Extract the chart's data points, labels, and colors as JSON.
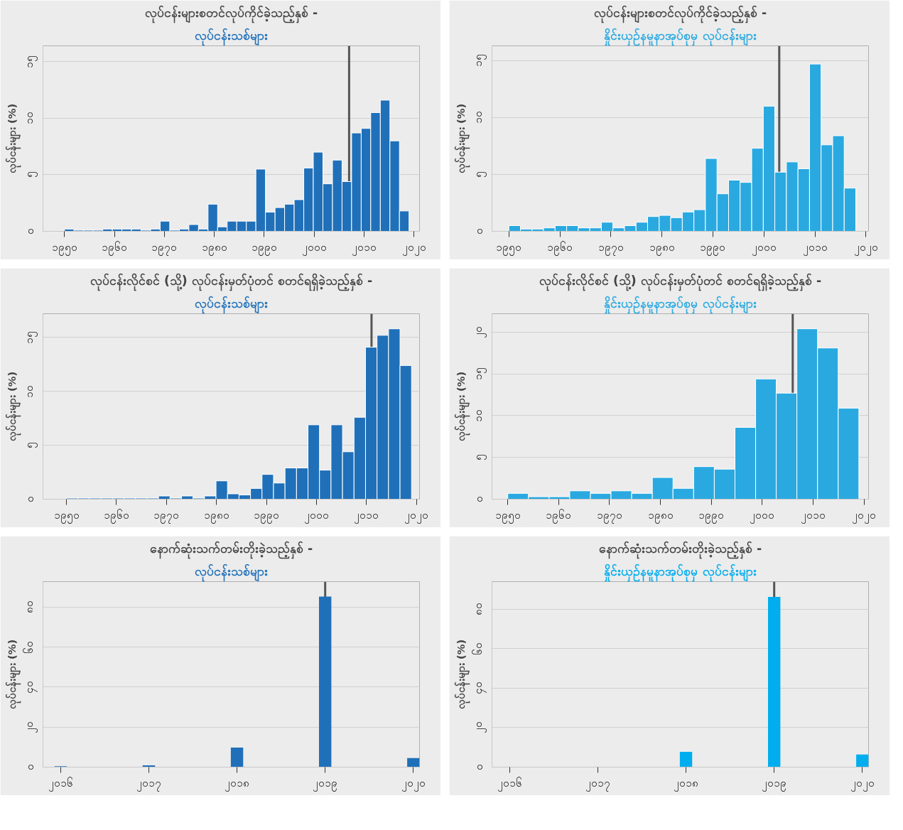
{
  "chart_data": [
    {
      "type": "histogram",
      "title": "လုပ်ငန်းများစတင်လုပ်ကိုင်ခဲ့သည့်နှစ် -",
      "subtitle": "လုပ်ငန်းသစ်များ",
      "ylabel": "လုပ်ငန်းများ (%)",
      "color": "#1f70b8",
      "bins": [
        1950,
        1951.92,
        1953.83,
        1955.75,
        1957.67,
        1959.58,
        1961.5,
        1963.42,
        1965.33,
        1967.25,
        1969.17,
        1971.08,
        1973,
        1974.92,
        1976.83,
        1978.75,
        1980.67,
        1982.58,
        1984.5,
        1986.42,
        1988.33,
        1990.25,
        1992.17,
        1994.08,
        1996,
        1997.92,
        1999.83,
        2001.75,
        2003.67,
        2005.58,
        2007.5,
        2009.42,
        2011.33,
        2013.25,
        2015.17,
        2017.08,
        2019
      ],
      "values": [
        0.2,
        0.1,
        0.1,
        0.1,
        0.2,
        0.2,
        0.2,
        0.2,
        0.1,
        0.2,
        0.9,
        0.1,
        0.2,
        0.6,
        0.2,
        2.4,
        0.4,
        0.9,
        0.9,
        0.9,
        5.5,
        1.7,
        2.1,
        2.4,
        2.8,
        5.6,
        7.0,
        4.2,
        6.3,
        4.4,
        8.7,
        9.1,
        10.5,
        11.6,
        8.0,
        1.8
      ],
      "xlim": [
        1945.7,
        2021.1
      ],
      "ylim": [
        0,
        16.4
      ],
      "xticks": [
        {
          "value": 1950,
          "label": "၁၉၅၀"
        },
        {
          "value": 1960,
          "label": "၁၉၆၀"
        },
        {
          "value": 1970,
          "label": "၁၉၇၀"
        },
        {
          "value": 1980,
          "label": "၁၉၈၀"
        },
        {
          "value": 1990,
          "label": "၁၉၉၀"
        },
        {
          "value": 2000,
          "label": "၂၀၀၀"
        },
        {
          "value": 2010,
          "label": "၂၀၁၀"
        },
        {
          "value": 2020,
          "label": "၂၀၂၀"
        }
      ],
      "yticks": [
        {
          "value": 0,
          "label": "၀"
        },
        {
          "value": 5,
          "label": "၅"
        },
        {
          "value": 10,
          "label": "၁၀"
        },
        {
          "value": 15,
          "label": "၁၅"
        }
      ],
      "grid": "y",
      "ref_lines": [
        {
          "axis": "x",
          "value": 2007,
          "color": "#555555"
        }
      ]
    },
    {
      "type": "histogram",
      "title": "လုပ်ငန်းများစတင်လုပ်ကိုင်ခဲ့သည့်နှစ် -",
      "subtitle": "နှိုင်းယှဉ်နမူနာအုပ်စုမှ လုပ်ငန်းများ",
      "ylabel": "လုပ်ငန်းများ (%)",
      "color": "#29a9e0",
      "bins": [
        1950,
        1952.27,
        1954.53,
        1956.8,
        1959.07,
        1961.33,
        1963.6,
        1965.87,
        1968.13,
        1970.4,
        1972.67,
        1974.93,
        1977.2,
        1979.47,
        1981.73,
        1984,
        1986.27,
        1988.53,
        1990.8,
        1993.07,
        1995.33,
        1997.6,
        1999.87,
        2002.13,
        2004.4,
        2006.67,
        2008.93,
        2011.2,
        2013.47,
        2015.73,
        2018
      ],
      "values": [
        0.5,
        0.2,
        0.2,
        0.3,
        0.5,
        0.5,
        0.3,
        0.3,
        0.8,
        0.3,
        0.5,
        0.8,
        1.3,
        1.4,
        1.2,
        1.7,
        1.9,
        6.4,
        3.3,
        4.5,
        4.3,
        7.3,
        11.0,
        5.2,
        6.1,
        5.5,
        14.7,
        7.6,
        8.4,
        3.8
      ],
      "xlim": [
        1946.7,
        2020.5
      ],
      "ylim": [
        0,
        16.3
      ],
      "xticks": [
        {
          "value": 1950,
          "label": "၁၉၅၀"
        },
        {
          "value": 1960,
          "label": "၁၉၆၀"
        },
        {
          "value": 1970,
          "label": "၁၉၇၀"
        },
        {
          "value": 1980,
          "label": "၁၉၈၀"
        },
        {
          "value": 1990,
          "label": "၁၉၉၀"
        },
        {
          "value": 2000,
          "label": "၂၀၀၀"
        },
        {
          "value": 2010,
          "label": "၂၀၁၀"
        },
        {
          "value": 2020,
          "label": "၂၀၂၀"
        }
      ],
      "yticks": [
        {
          "value": 0,
          "label": "၀"
        },
        {
          "value": 5,
          "label": "၅"
        },
        {
          "value": 10,
          "label": "၁၀"
        },
        {
          "value": 15,
          "label": "၁၅"
        }
      ],
      "grid": "y",
      "ref_lines": [
        {
          "axis": "x",
          "value": 2003,
          "color": "#555555"
        }
      ]
    },
    {
      "type": "histogram",
      "title": "လုပ်ငန်းလိုင်စင် (သို့) လုပ်ငန်းမှတ်ပုံတင် စတင်ရရှိခဲ့သည့်နှစ် -",
      "subtitle": "လုပ်ငန်းသစ်များ",
      "ylabel": "လုပ်ငန်းများ (%)",
      "color": "#1f70b8",
      "bins": [
        1950,
        1952.3,
        1954.6,
        1956.9,
        1959.2,
        1961.5,
        1963.8,
        1966.1,
        1968.4,
        1970.7,
        1973,
        1975.3,
        1977.6,
        1979.9,
        1982.2,
        1984.5,
        1986.8,
        1989.1,
        1991.4,
        1993.7,
        1996,
        1998.3,
        2000.6,
        2002.9,
        2005.2,
        2007.5,
        2009.8,
        2012.1,
        2014.4,
        2016.7,
        2019
      ],
      "values": [
        0.1,
        0.1,
        0.1,
        0.1,
        0.1,
        0.1,
        0.1,
        0.1,
        0.3,
        0.1,
        0.3,
        0.1,
        0.3,
        1.7,
        0.5,
        0.4,
        1.0,
        2.3,
        1.5,
        2.9,
        2.9,
        6.9,
        2.7,
        6.9,
        4.4,
        7.6,
        14.1,
        15.2,
        15.8,
        12.4
      ],
      "xlim": [
        1945.3,
        2020.6
      ],
      "ylim": [
        0,
        17.2
      ],
      "xticks": [
        {
          "value": 1950,
          "label": "၁၉၅၀"
        },
        {
          "value": 1960,
          "label": "၁၉၆၀"
        },
        {
          "value": 1970,
          "label": "၁၉၇၀"
        },
        {
          "value": 1980,
          "label": "၁၉၈၀"
        },
        {
          "value": 1990,
          "label": "၁၉၉၀"
        },
        {
          "value": 2000,
          "label": "၂၀၀၀"
        },
        {
          "value": 2010,
          "label": "၂၀၁၀"
        },
        {
          "value": 2020,
          "label": "၂၀၂၀"
        }
      ],
      "yticks": [
        {
          "value": 0,
          "label": "၀"
        },
        {
          "value": 5,
          "label": "၅"
        },
        {
          "value": 10,
          "label": "၁၀"
        },
        {
          "value": 15,
          "label": "၁၅"
        }
      ],
      "grid": "y",
      "ref_lines": [
        {
          "axis": "x",
          "value": 2011,
          "color": "#555555"
        }
      ]
    },
    {
      "type": "histogram",
      "title": "လုပ်ငန်းလိုင်စင် (သို့) လုပ်ငန်းမှတ်ပုံတင် စတင်ရရှိခဲ့သည့်နှစ် -",
      "subtitle": "နှိုင်းယှဉ်နမူနာအုပ်စုမှ လုပ်ငန်းများ",
      "ylabel": "လုပ်ငန်းများ (%)",
      "color": "#29a9e0",
      "bins": [
        1950,
        1954.06,
        1958.12,
        1962.18,
        1966.24,
        1970.29,
        1974.35,
        1978.41,
        1982.47,
        1986.53,
        1990.59,
        1994.65,
        1998.71,
        2002.76,
        2006.82,
        2010.88,
        2014.94,
        2019
      ],
      "values": [
        0.7,
        0.3,
        0.3,
        1.0,
        0.7,
        1.0,
        0.7,
        2.6,
        1.3,
        3.9,
        3.6,
        8.6,
        14.4,
        12.7,
        20.4,
        18.1,
        10.9
      ],
      "xlim": [
        1946.9,
        2020.9
      ],
      "ylim": [
        0,
        22.2
      ],
      "xticks": [
        {
          "value": 1950,
          "label": "၁၉၅၀"
        },
        {
          "value": 1960,
          "label": "၁၉၆၀"
        },
        {
          "value": 1970,
          "label": "၁၉၇၀"
        },
        {
          "value": 1980,
          "label": "၁၉၈၀"
        },
        {
          "value": 1990,
          "label": "၁၉၉၀"
        },
        {
          "value": 2000,
          "label": "၂၀၀၀"
        },
        {
          "value": 2010,
          "label": "၂၀၁၀"
        },
        {
          "value": 2020,
          "label": "၂၀၂၀"
        }
      ],
      "yticks": [
        {
          "value": 0,
          "label": "၀"
        },
        {
          "value": 5,
          "label": "၅"
        },
        {
          "value": 10,
          "label": "၁၀"
        },
        {
          "value": 15,
          "label": "၁၅"
        },
        {
          "value": 20,
          "label": "၂၀"
        }
      ],
      "grid": "y",
      "ref_lines": [
        {
          "axis": "x",
          "value": 2006,
          "color": "#555555"
        }
      ]
    },
    {
      "type": "bar",
      "title": "နောက်ဆုံးသက်တမ်းတိုးခဲ့သည့်နှစ် -",
      "subtitle": "လုပ်ငန်းသစ်များ",
      "ylabel": "လုပ်ငန်းများ (%)",
      "color": "#1f70b8",
      "x": [
        2016,
        2017,
        2018,
        2019,
        2020
      ],
      "values": [
        0.4,
        0.9,
        9.8,
        85.2,
        4.5
      ],
      "xlim": [
        2015.8,
        2020.07
      ],
      "ylim": [
        0,
        92.7
      ],
      "xticks": [
        {
          "value": 2016,
          "label": "၂၀၁၆"
        },
        {
          "value": 2017,
          "label": "၂၀၁၇"
        },
        {
          "value": 2018,
          "label": "၂၀၁၈"
        },
        {
          "value": 2019,
          "label": "၂၀၁၉"
        },
        {
          "value": 2020,
          "label": "၂၀၂၀"
        }
      ],
      "yticks": [
        {
          "value": 0,
          "label": "၀"
        },
        {
          "value": 20,
          "label": "၂၀"
        },
        {
          "value": 40,
          "label": "၄၀"
        },
        {
          "value": 60,
          "label": "၆၀"
        },
        {
          "value": 80,
          "label": "၈၀"
        }
      ],
      "grid": "y",
      "ref_lines": [
        {
          "axis": "x",
          "value": 2019,
          "color": "#555555"
        }
      ]
    },
    {
      "type": "bar",
      "title": "နောက်ဆုံးသက်တမ်းတိုးခဲ့သည့်နှစ် -",
      "subtitle": "နှိုင်းယှဉ်နမူနာအုပ်စုမှ လုပ်ငန်းများ",
      "ylabel": "လုပ်ငန်းများ (%)",
      "color": "#00adef",
      "x": [
        2016,
        2017,
        2018,
        2019,
        2020
      ],
      "values": [
        0,
        0,
        7.7,
        86.2,
        6.4
      ],
      "xlim": [
        2015.8,
        2020.07
      ],
      "ylim": [
        0,
        93.9
      ],
      "xticks": [
        {
          "value": 2016,
          "label": "၂၀၁၆"
        },
        {
          "value": 2017,
          "label": "၂၀၁၇"
        },
        {
          "value": 2018,
          "label": "၂၀၁၈"
        },
        {
          "value": 2019,
          "label": "၂၀၁၉"
        },
        {
          "value": 2020,
          "label": "၂၀၂၀"
        }
      ],
      "yticks": [
        {
          "value": 0,
          "label": "၀"
        },
        {
          "value": 20,
          "label": "၂၀"
        },
        {
          "value": 40,
          "label": "၄၀"
        },
        {
          "value": 60,
          "label": "၆၀"
        },
        {
          "value": 80,
          "label": "၈၀"
        }
      ],
      "grid": "y",
      "ref_lines": [
        {
          "axis": "x",
          "value": 2019,
          "color": "#555555"
        }
      ]
    }
  ]
}
